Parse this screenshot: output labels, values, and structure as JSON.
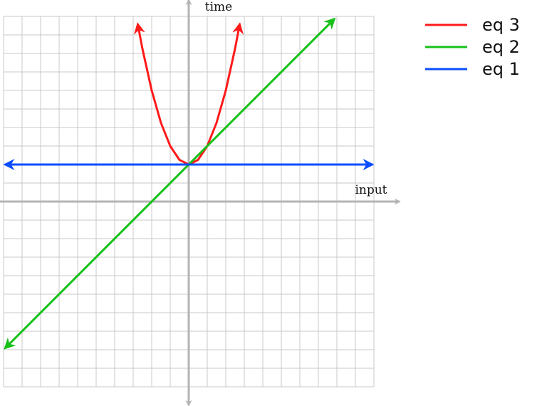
{
  "chart_data": {
    "type": "line",
    "xlabel": "input",
    "ylabel": "time",
    "xlim": [
      -10,
      10
    ],
    "ylim": [
      -10,
      10
    ],
    "grid": true,
    "legend_position": "top-right",
    "series": [
      {
        "name": "eq 3",
        "color": "#ff1a1a",
        "points": [
          [
            -2.75,
            9.56
          ],
          [
            -2.5,
            8.25
          ],
          [
            -2,
            6
          ],
          [
            -1.5,
            4.25
          ],
          [
            -1,
            3
          ],
          [
            -0.5,
            2.25
          ],
          [
            0,
            2
          ],
          [
            0.5,
            2.25
          ],
          [
            1,
            3
          ],
          [
            1.5,
            4.25
          ],
          [
            2,
            6
          ],
          [
            2.5,
            8.25
          ],
          [
            2.75,
            9.56
          ]
        ],
        "arrow_start": true,
        "arrow_end": true
      },
      {
        "name": "eq 2",
        "color": "#19c019",
        "points": [
          [
            -9.9,
            -7.9
          ],
          [
            7.85,
            9.85
          ]
        ],
        "arrow_start": true,
        "arrow_end": true
      },
      {
        "name": "eq 1",
        "color": "#0a4dff",
        "points": [
          [
            -9.9,
            2
          ],
          [
            9.9,
            2
          ]
        ],
        "arrow_start": true,
        "arrow_end": true
      }
    ]
  }
}
